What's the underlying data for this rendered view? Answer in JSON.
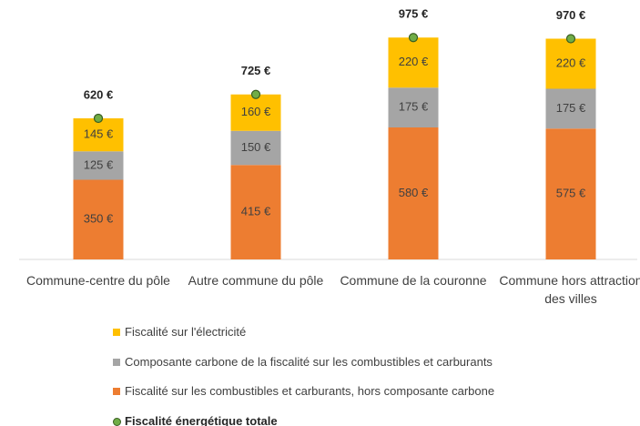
{
  "chart_data": {
    "type": "stacked_bar",
    "categories": [
      "Commune-centre du pôle",
      "Autre commune du pôle",
      "Commune de la couronne",
      "Commune hors attraction des villes"
    ],
    "series": [
      {
        "name": "Fiscalité sur les combustibles et carburants, hors composante carbone",
        "color": "#ed7d31",
        "values": [
          350,
          415,
          580,
          575
        ],
        "value_labels": [
          "350 €",
          "415 €",
          "580 €",
          "575 €"
        ]
      },
      {
        "name": "Composante carbone de la fiscalité sur les combustibles et carburants",
        "color": "#a5a5a5",
        "values": [
          125,
          150,
          175,
          175
        ],
        "value_labels": [
          "125 €",
          "150 €",
          "175 €",
          "175 €"
        ]
      },
      {
        "name": "Fiscalité sur l'électricité",
        "color": "#ffc000",
        "values": [
          145,
          160,
          220,
          220
        ],
        "value_labels": [
          "145 €",
          "160 €",
          "220 €",
          "220 €"
        ]
      },
      {
        "name": "Fiscalité énergétique totale",
        "type": "dot",
        "color": "#70ad47",
        "values": [
          620,
          725,
          975,
          970
        ],
        "value_labels": [
          "620 €",
          "725 €",
          "975 €",
          "970 €"
        ]
      }
    ],
    "ylim": [
      0,
      1000
    ],
    "grid": false
  }
}
